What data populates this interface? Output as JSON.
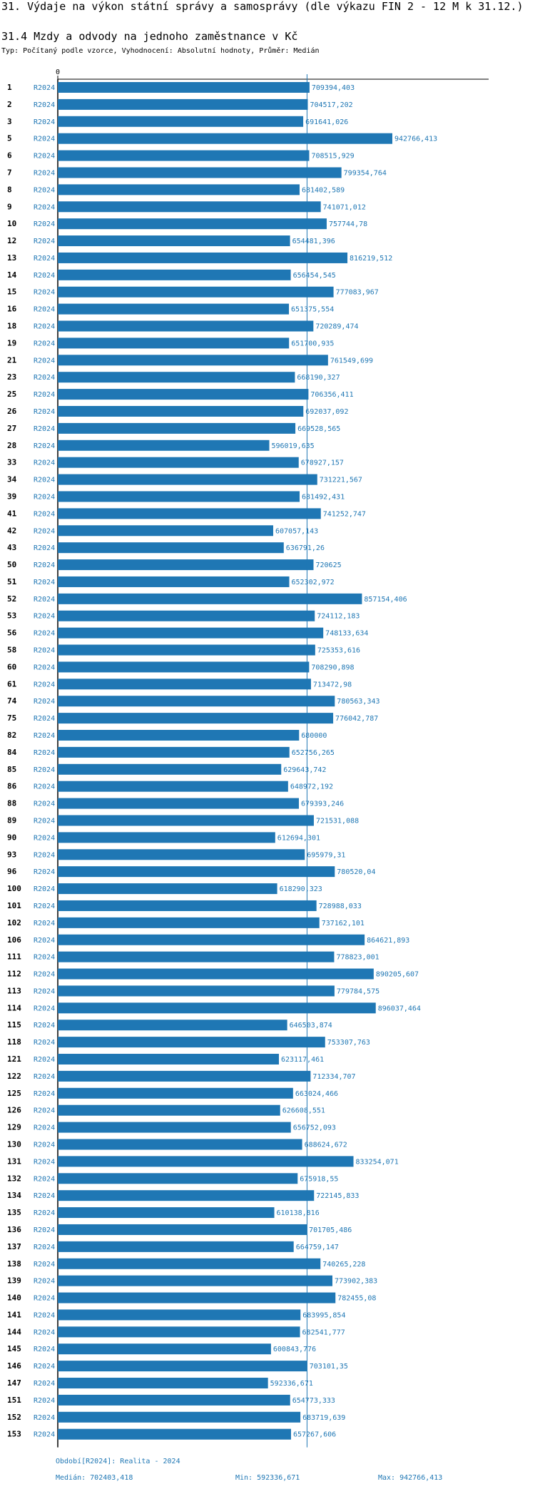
{
  "heading": "31. Výdaje na výkon státní správy a samosprávy (dle výkazu FIN 2 - 12 M k 31.12.)",
  "subheading": "31.4 Mzdy a odvody na jednoho zaměstnance v Kč",
  "meta_line": "Typ: Počítaný podle vzorce, Vyhodnocení: Absolutní hodnoty, Průměr: Medián",
  "colors": {
    "bar": "#1f77b4",
    "label": "#1f77b4",
    "median_line": "#1f77b4",
    "axis": "#000000"
  },
  "chart_data": {
    "type": "bar",
    "orientation": "horizontal",
    "axis_tick_label": "0",
    "xlim": [
      0,
      942766.413
    ],
    "median": 702403.418,
    "series_name": "R2024",
    "categories": [
      "1",
      "2",
      "3",
      "5",
      "6",
      "7",
      "8",
      "9",
      "10",
      "12",
      "13",
      "14",
      "15",
      "16",
      "18",
      "19",
      "21",
      "23",
      "25",
      "26",
      "27",
      "28",
      "33",
      "34",
      "39",
      "41",
      "42",
      "43",
      "50",
      "51",
      "52",
      "53",
      "56",
      "58",
      "60",
      "61",
      "74",
      "75",
      "82",
      "84",
      "85",
      "86",
      "88",
      "89",
      "90",
      "93",
      "96",
      "100",
      "101",
      "102",
      "106",
      "111",
      "112",
      "113",
      "114",
      "115",
      "118",
      "121",
      "122",
      "125",
      "126",
      "129",
      "130",
      "131",
      "132",
      "134",
      "135",
      "136",
      "137",
      "138",
      "139",
      "140",
      "141",
      "144",
      "145",
      "146",
      "147",
      "151",
      "152",
      "153"
    ],
    "value_labels": [
      "709394,403",
      "704517,202",
      "691641,026",
      "942766,413",
      "708515,929",
      "799354,764",
      "681402,589",
      "741071,012",
      "757744,78",
      "654481,396",
      "816219,512",
      "656454,545",
      "777083,967",
      "651375,554",
      "720289,474",
      "651700,935",
      "761549,699",
      "668190,327",
      "706356,411",
      "692037,092",
      "669528,565",
      "596019,635",
      "678927,157",
      "731221,567",
      "681492,431",
      "741252,747",
      "607057,143",
      "636791,26",
      "720625",
      "652302,972",
      "857154,406",
      "724112,183",
      "748133,634",
      "725353,616",
      "708290,898",
      "713472,98",
      "780563,343",
      "776042,787",
      "680000",
      "652756,265",
      "629643,742",
      "648972,192",
      "679393,246",
      "721531,088",
      "612694,301",
      "695979,31",
      "780520,04",
      "618290,323",
      "728988,033",
      "737162,101",
      "864621,893",
      "778823,001",
      "890205,607",
      "779784,575",
      "896037,464",
      "646503,874",
      "753307,763",
      "623117,461",
      "712334,707",
      "663024,466",
      "626608,551",
      "656752,093",
      "688624,672",
      "833254,071",
      "675918,55",
      "722145,833",
      "610138,816",
      "701705,486",
      "664759,147",
      "740265,228",
      "773902,383",
      "782455,08",
      "683995,854",
      "682541,777",
      "600843,776",
      "703101,35",
      "592336,671",
      "654773,333",
      "683719,639",
      "657267,606"
    ]
  },
  "footer": {
    "period": "Období[R2024]: Realita - 2024",
    "median_text": "Medián: 702403,418",
    "min_text": "Min: 592336,671",
    "max_text": "Max: 942766,413"
  }
}
